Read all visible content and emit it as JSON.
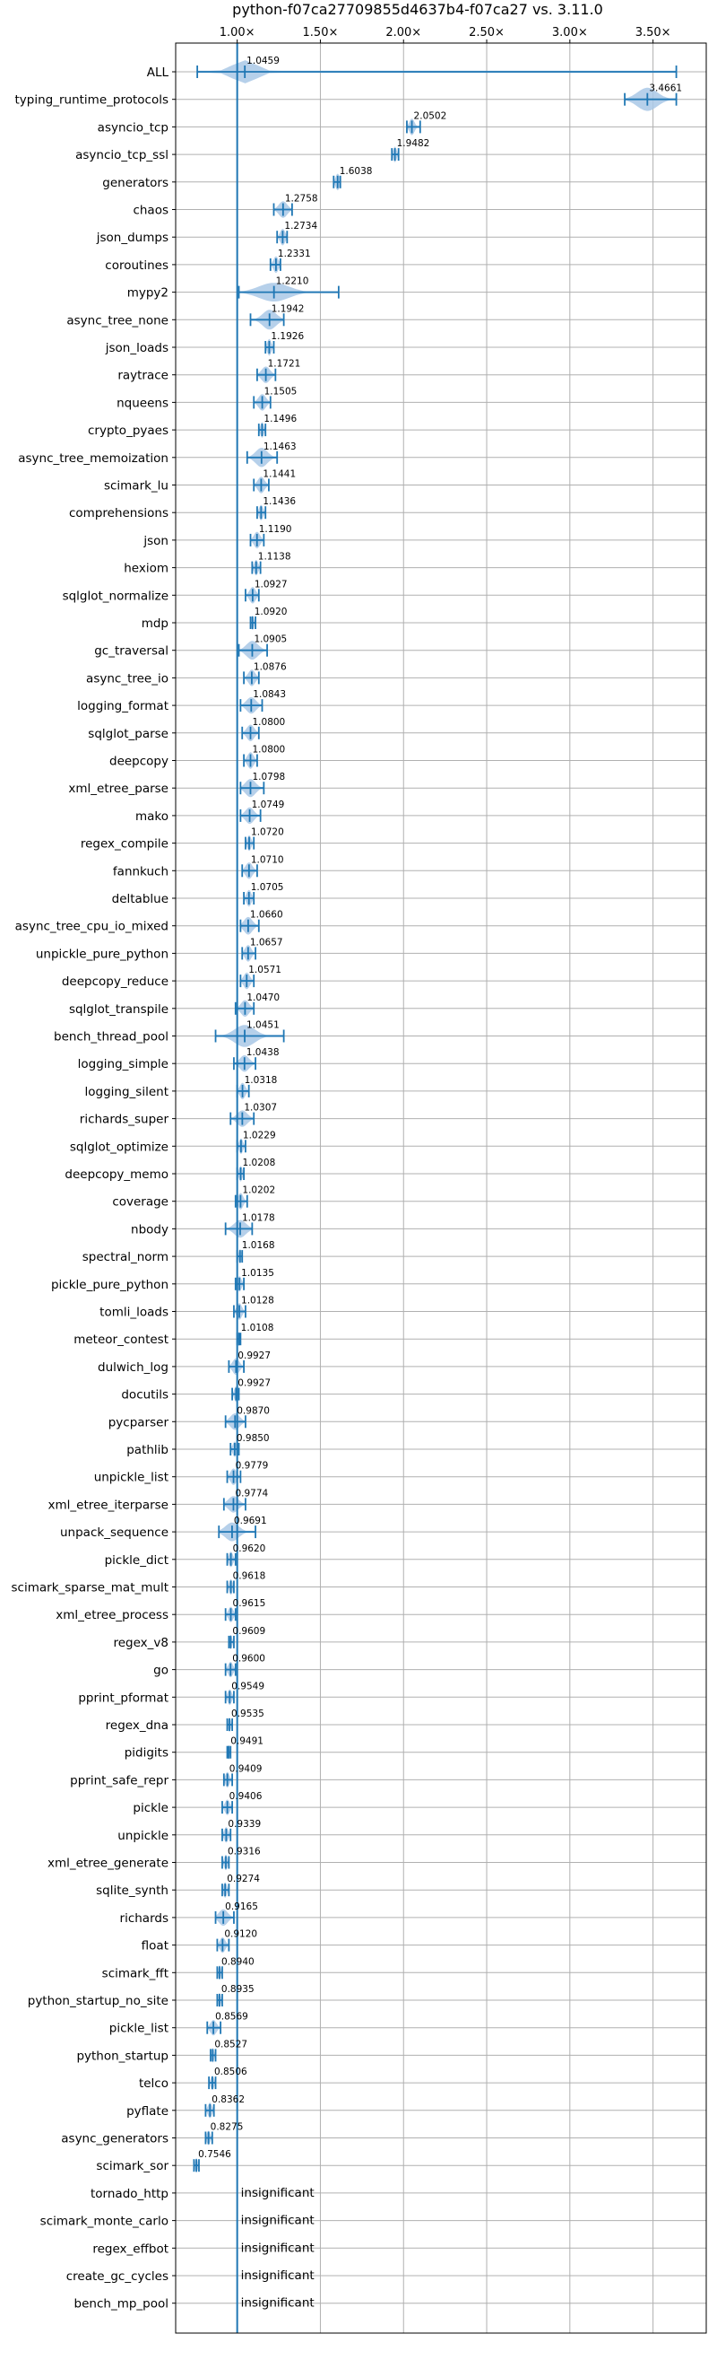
{
  "chart_data": {
    "type": "violin",
    "title": "python-f07ca27709855d4637b4-f07ca27 vs. 3.11.0",
    "xlabel": "",
    "ylabel": "",
    "xlim": [
      0.63,
      3.82
    ],
    "x_ticks": [
      {
        "value": 1.0,
        "label": "1.00×"
      },
      {
        "value": 1.5,
        "label": "1.50×"
      },
      {
        "value": 2.0,
        "label": "2.00×"
      },
      {
        "value": 2.5,
        "label": "2.50×"
      },
      {
        "value": 3.0,
        "label": "3.00×"
      },
      {
        "value": 3.5,
        "label": "3.50×"
      }
    ],
    "grid": true,
    "reference_line": 1.0,
    "insignificant_label": "insignificant",
    "colors": {
      "violin_fill": "#a9c8e6",
      "marker": "#1f77b4",
      "reference_line": "#1f77b4",
      "grid": "#b0b0b0"
    },
    "benchmarks": [
      {
        "name": "ALL",
        "value": 1.0459,
        "label": "1.0459",
        "min": 0.76,
        "max": 3.64,
        "spread": 0.07,
        "vmax": 0.42
      },
      {
        "name": "typing_runtime_protocols",
        "value": 3.4661,
        "label": "3.4661",
        "min": 3.33,
        "max": 3.64,
        "spread": 0.06,
        "vmax": 0.42
      },
      {
        "name": "asyncio_tcp",
        "value": 2.0502,
        "label": "2.0502",
        "min": 2.02,
        "max": 2.1,
        "spread": 0.015,
        "vmax": 0.3
      },
      {
        "name": "asyncio_tcp_ssl",
        "value": 1.9482,
        "label": "1.9482",
        "min": 1.93,
        "max": 1.97,
        "spread": 0.01,
        "vmax": 0.28
      },
      {
        "name": "generators",
        "value": 1.6038,
        "label": "1.6038",
        "min": 1.58,
        "max": 1.62,
        "spread": 0.012,
        "vmax": 0.3
      },
      {
        "name": "chaos",
        "value": 1.2758,
        "label": "1.2758",
        "min": 1.22,
        "max": 1.33,
        "spread": 0.025,
        "vmax": 0.3
      },
      {
        "name": "json_dumps",
        "value": 1.2734,
        "label": "1.2734",
        "min": 1.24,
        "max": 1.3,
        "spread": 0.015,
        "vmax": 0.3
      },
      {
        "name": "coroutines",
        "value": 1.2331,
        "label": "1.2331",
        "min": 1.2,
        "max": 1.26,
        "spread": 0.015,
        "vmax": 0.3
      },
      {
        "name": "mypy2",
        "value": 1.221,
        "label": "1.2210",
        "min": 1.01,
        "max": 1.61,
        "spread": 0.09,
        "vmax": 0.34
      },
      {
        "name": "async_tree_none",
        "value": 1.1942,
        "label": "1.1942",
        "min": 1.08,
        "max": 1.28,
        "spread": 0.04,
        "vmax": 0.36
      },
      {
        "name": "json_loads",
        "value": 1.1926,
        "label": "1.1926",
        "min": 1.17,
        "max": 1.22,
        "spread": 0.012,
        "vmax": 0.3
      },
      {
        "name": "raytrace",
        "value": 1.1721,
        "label": "1.1721",
        "min": 1.12,
        "max": 1.23,
        "spread": 0.025,
        "vmax": 0.3
      },
      {
        "name": "nqueens",
        "value": 1.1505,
        "label": "1.1505",
        "min": 1.1,
        "max": 1.2,
        "spread": 0.022,
        "vmax": 0.3
      },
      {
        "name": "crypto_pyaes",
        "value": 1.1496,
        "label": "1.1496",
        "min": 1.13,
        "max": 1.17,
        "spread": 0.01,
        "vmax": 0.28
      },
      {
        "name": "async_tree_memoization",
        "value": 1.1463,
        "label": "1.1463",
        "min": 1.06,
        "max": 1.24,
        "spread": 0.035,
        "vmax": 0.35
      },
      {
        "name": "scimark_lu",
        "value": 1.1441,
        "label": "1.1441",
        "min": 1.1,
        "max": 1.19,
        "spread": 0.02,
        "vmax": 0.3
      },
      {
        "name": "comprehensions",
        "value": 1.1436,
        "label": "1.1436",
        "min": 1.12,
        "max": 1.17,
        "spread": 0.012,
        "vmax": 0.28
      },
      {
        "name": "json",
        "value": 1.119,
        "label": "1.1190",
        "min": 1.08,
        "max": 1.16,
        "spread": 0.018,
        "vmax": 0.3
      },
      {
        "name": "hexiom",
        "value": 1.1138,
        "label": "1.1138",
        "min": 1.09,
        "max": 1.14,
        "spread": 0.012,
        "vmax": 0.28
      },
      {
        "name": "sqlglot_normalize",
        "value": 1.0927,
        "label": "1.0927",
        "min": 1.05,
        "max": 1.13,
        "spread": 0.018,
        "vmax": 0.3
      },
      {
        "name": "mdp",
        "value": 1.092,
        "label": "1.0920",
        "min": 1.08,
        "max": 1.11,
        "spread": 0.008,
        "vmax": 0.26
      },
      {
        "name": "gc_traversal",
        "value": 1.0905,
        "label": "1.0905",
        "min": 1.01,
        "max": 1.18,
        "spread": 0.035,
        "vmax": 0.34
      },
      {
        "name": "async_tree_io",
        "value": 1.0876,
        "label": "1.0876",
        "min": 1.04,
        "max": 1.13,
        "spread": 0.02,
        "vmax": 0.3
      },
      {
        "name": "logging_format",
        "value": 1.0843,
        "label": "1.0843",
        "min": 1.02,
        "max": 1.15,
        "spread": 0.028,
        "vmax": 0.3
      },
      {
        "name": "sqlglot_parse",
        "value": 1.08,
        "label": "1.0800",
        "min": 1.03,
        "max": 1.13,
        "spread": 0.022,
        "vmax": 0.3
      },
      {
        "name": "deepcopy",
        "value": 1.08,
        "label": "1.0800",
        "min": 1.04,
        "max": 1.12,
        "spread": 0.018,
        "vmax": 0.3
      },
      {
        "name": "xml_etree_parse",
        "value": 1.0798,
        "label": "1.0798",
        "min": 1.02,
        "max": 1.16,
        "spread": 0.03,
        "vmax": 0.33
      },
      {
        "name": "mako",
        "value": 1.0749,
        "label": "1.0749",
        "min": 1.02,
        "max": 1.14,
        "spread": 0.025,
        "vmax": 0.3
      },
      {
        "name": "regex_compile",
        "value": 1.072,
        "label": "1.0720",
        "min": 1.05,
        "max": 1.1,
        "spread": 0.012,
        "vmax": 0.28
      },
      {
        "name": "fannkuch",
        "value": 1.071,
        "label": "1.0710",
        "min": 1.03,
        "max": 1.12,
        "spread": 0.02,
        "vmax": 0.3
      },
      {
        "name": "deltablue",
        "value": 1.0705,
        "label": "1.0705",
        "min": 1.04,
        "max": 1.1,
        "spread": 0.014,
        "vmax": 0.3
      },
      {
        "name": "async_tree_cpu_io_mixed",
        "value": 1.066,
        "label": "1.0660",
        "min": 1.02,
        "max": 1.13,
        "spread": 0.025,
        "vmax": 0.32
      },
      {
        "name": "unpickle_pure_python",
        "value": 1.0657,
        "label": "1.0657",
        "min": 1.03,
        "max": 1.11,
        "spread": 0.018,
        "vmax": 0.3
      },
      {
        "name": "deepcopy_reduce",
        "value": 1.0571,
        "label": "1.0571",
        "min": 1.02,
        "max": 1.1,
        "spread": 0.018,
        "vmax": 0.3
      },
      {
        "name": "sqlglot_transpile",
        "value": 1.047,
        "label": "1.0470",
        "min": 0.99,
        "max": 1.1,
        "spread": 0.024,
        "vmax": 0.3
      },
      {
        "name": "bench_thread_pool",
        "value": 1.0451,
        "label": "1.0451",
        "min": 0.87,
        "max": 1.28,
        "spread": 0.06,
        "vmax": 0.4
      },
      {
        "name": "logging_simple",
        "value": 1.0438,
        "label": "1.0438",
        "min": 0.98,
        "max": 1.11,
        "spread": 0.028,
        "vmax": 0.3
      },
      {
        "name": "logging_silent",
        "value": 1.0318,
        "label": "1.0318",
        "min": 1.0,
        "max": 1.07,
        "spread": 0.016,
        "vmax": 0.3
      },
      {
        "name": "richards_super",
        "value": 1.0307,
        "label": "1.0307",
        "min": 0.96,
        "max": 1.1,
        "spread": 0.03,
        "vmax": 0.3
      },
      {
        "name": "sqlglot_optimize",
        "value": 1.0229,
        "label": "1.0229",
        "min": 1.0,
        "max": 1.05,
        "spread": 0.012,
        "vmax": 0.28
      },
      {
        "name": "deepcopy_memo",
        "value": 1.0208,
        "label": "1.0208",
        "min": 1.0,
        "max": 1.04,
        "spread": 0.01,
        "vmax": 0.28
      },
      {
        "name": "coverage",
        "value": 1.0202,
        "label": "1.0202",
        "min": 0.99,
        "max": 1.06,
        "spread": 0.015,
        "vmax": 0.3
      },
      {
        "name": "nbody",
        "value": 1.0178,
        "label": "1.0178",
        "min": 0.93,
        "max": 1.09,
        "spread": 0.035,
        "vmax": 0.32
      },
      {
        "name": "spectral_norm",
        "value": 1.0168,
        "label": "1.0168",
        "min": 1.0,
        "max": 1.03,
        "spread": 0.008,
        "vmax": 0.26
      },
      {
        "name": "pickle_pure_python",
        "value": 1.0135,
        "label": "1.0135",
        "min": 0.99,
        "max": 1.04,
        "spread": 0.012,
        "vmax": 0.28
      },
      {
        "name": "tomli_loads",
        "value": 1.0128,
        "label": "1.0128",
        "min": 0.98,
        "max": 1.05,
        "spread": 0.015,
        "vmax": 0.3
      },
      {
        "name": "meteor_contest",
        "value": 1.0108,
        "label": "1.0108",
        "min": 1.0,
        "max": 1.02,
        "spread": 0.005,
        "vmax": 0.26
      },
      {
        "name": "dulwich_log",
        "value": 0.9927,
        "label": "0.9927",
        "min": 0.95,
        "max": 1.04,
        "spread": 0.02,
        "vmax": 0.3
      },
      {
        "name": "docutils",
        "value": 0.9927,
        "label": "0.9927",
        "min": 0.97,
        "max": 1.01,
        "spread": 0.01,
        "vmax": 0.28
      },
      {
        "name": "pycparser",
        "value": 0.987,
        "label": "0.9870",
        "min": 0.93,
        "max": 1.05,
        "spread": 0.028,
        "vmax": 0.3
      },
      {
        "name": "pathlib",
        "value": 0.985,
        "label": "0.9850",
        "min": 0.96,
        "max": 1.01,
        "spread": 0.012,
        "vmax": 0.28
      },
      {
        "name": "unpickle_list",
        "value": 0.9779,
        "label": "0.9779",
        "min": 0.94,
        "max": 1.02,
        "spread": 0.018,
        "vmax": 0.3
      },
      {
        "name": "xml_etree_iterparse",
        "value": 0.9774,
        "label": "0.9774",
        "min": 0.92,
        "max": 1.05,
        "spread": 0.03,
        "vmax": 0.3
      },
      {
        "name": "unpack_sequence",
        "value": 0.9691,
        "label": "0.9691",
        "min": 0.89,
        "max": 1.11,
        "spread": 0.04,
        "vmax": 0.34
      },
      {
        "name": "pickle_dict",
        "value": 0.962,
        "label": "0.9620",
        "min": 0.94,
        "max": 0.99,
        "spread": 0.012,
        "vmax": 0.28
      },
      {
        "name": "scimark_sparse_mat_mult",
        "value": 0.9618,
        "label": "0.9618",
        "min": 0.94,
        "max": 0.98,
        "spread": 0.01,
        "vmax": 0.28
      },
      {
        "name": "xml_etree_process",
        "value": 0.9615,
        "label": "0.9615",
        "min": 0.93,
        "max": 0.99,
        "spread": 0.014,
        "vmax": 0.28
      },
      {
        "name": "regex_v8",
        "value": 0.9609,
        "label": "0.9609",
        "min": 0.95,
        "max": 0.98,
        "spread": 0.008,
        "vmax": 0.26
      },
      {
        "name": "go",
        "value": 0.96,
        "label": "0.9600",
        "min": 0.93,
        "max": 0.99,
        "spread": 0.014,
        "vmax": 0.28
      },
      {
        "name": "pprint_pformat",
        "value": 0.9549,
        "label": "0.9549",
        "min": 0.93,
        "max": 0.98,
        "spread": 0.012,
        "vmax": 0.28
      },
      {
        "name": "regex_dna",
        "value": 0.9535,
        "label": "0.9535",
        "min": 0.94,
        "max": 0.97,
        "spread": 0.008,
        "vmax": 0.26
      },
      {
        "name": "pidigits",
        "value": 0.9491,
        "label": "0.9491",
        "min": 0.94,
        "max": 0.96,
        "spread": 0.005,
        "vmax": 0.26
      },
      {
        "name": "pprint_safe_repr",
        "value": 0.9409,
        "label": "0.9409",
        "min": 0.92,
        "max": 0.97,
        "spread": 0.012,
        "vmax": 0.28
      },
      {
        "name": "pickle",
        "value": 0.9406,
        "label": "0.9406",
        "min": 0.91,
        "max": 0.97,
        "spread": 0.014,
        "vmax": 0.28
      },
      {
        "name": "unpickle",
        "value": 0.9339,
        "label": "0.9339",
        "min": 0.91,
        "max": 0.96,
        "spread": 0.012,
        "vmax": 0.28
      },
      {
        "name": "xml_etree_generate",
        "value": 0.9316,
        "label": "0.9316",
        "min": 0.91,
        "max": 0.95,
        "spread": 0.01,
        "vmax": 0.28
      },
      {
        "name": "sqlite_synth",
        "value": 0.9274,
        "label": "0.9274",
        "min": 0.91,
        "max": 0.95,
        "spread": 0.01,
        "vmax": 0.28
      },
      {
        "name": "richards",
        "value": 0.9165,
        "label": "0.9165",
        "min": 0.87,
        "max": 0.98,
        "spread": 0.026,
        "vmax": 0.3
      },
      {
        "name": "float",
        "value": 0.912,
        "label": "0.9120",
        "min": 0.88,
        "max": 0.95,
        "spread": 0.016,
        "vmax": 0.28
      },
      {
        "name": "scimark_fft",
        "value": 0.894,
        "label": "0.8940",
        "min": 0.88,
        "max": 0.91,
        "spread": 0.008,
        "vmax": 0.26
      },
      {
        "name": "python_startup_no_site",
        "value": 0.8935,
        "label": "0.8935",
        "min": 0.88,
        "max": 0.91,
        "spread": 0.008,
        "vmax": 0.26
      },
      {
        "name": "pickle_list",
        "value": 0.8569,
        "label": "0.8569",
        "min": 0.82,
        "max": 0.9,
        "spread": 0.018,
        "vmax": 0.28
      },
      {
        "name": "python_startup",
        "value": 0.8527,
        "label": "0.8527",
        "min": 0.84,
        "max": 0.87,
        "spread": 0.008,
        "vmax": 0.26
      },
      {
        "name": "telco",
        "value": 0.8506,
        "label": "0.8506",
        "min": 0.83,
        "max": 0.87,
        "spread": 0.01,
        "vmax": 0.26
      },
      {
        "name": "pyflate",
        "value": 0.8362,
        "label": "0.8362",
        "min": 0.81,
        "max": 0.86,
        "spread": 0.012,
        "vmax": 0.28
      },
      {
        "name": "async_generators",
        "value": 0.8275,
        "label": "0.8275",
        "min": 0.81,
        "max": 0.85,
        "spread": 0.01,
        "vmax": 0.26
      },
      {
        "name": "scimark_sor",
        "value": 0.7546,
        "label": "0.7546",
        "min": 0.74,
        "max": 0.77,
        "spread": 0.008,
        "vmax": 0.26
      },
      {
        "name": "tornado_http",
        "insignificant": true
      },
      {
        "name": "scimark_monte_carlo",
        "insignificant": true
      },
      {
        "name": "regex_effbot",
        "insignificant": true
      },
      {
        "name": "create_gc_cycles",
        "insignificant": true
      },
      {
        "name": "bench_mp_pool",
        "insignificant": true
      }
    ]
  }
}
